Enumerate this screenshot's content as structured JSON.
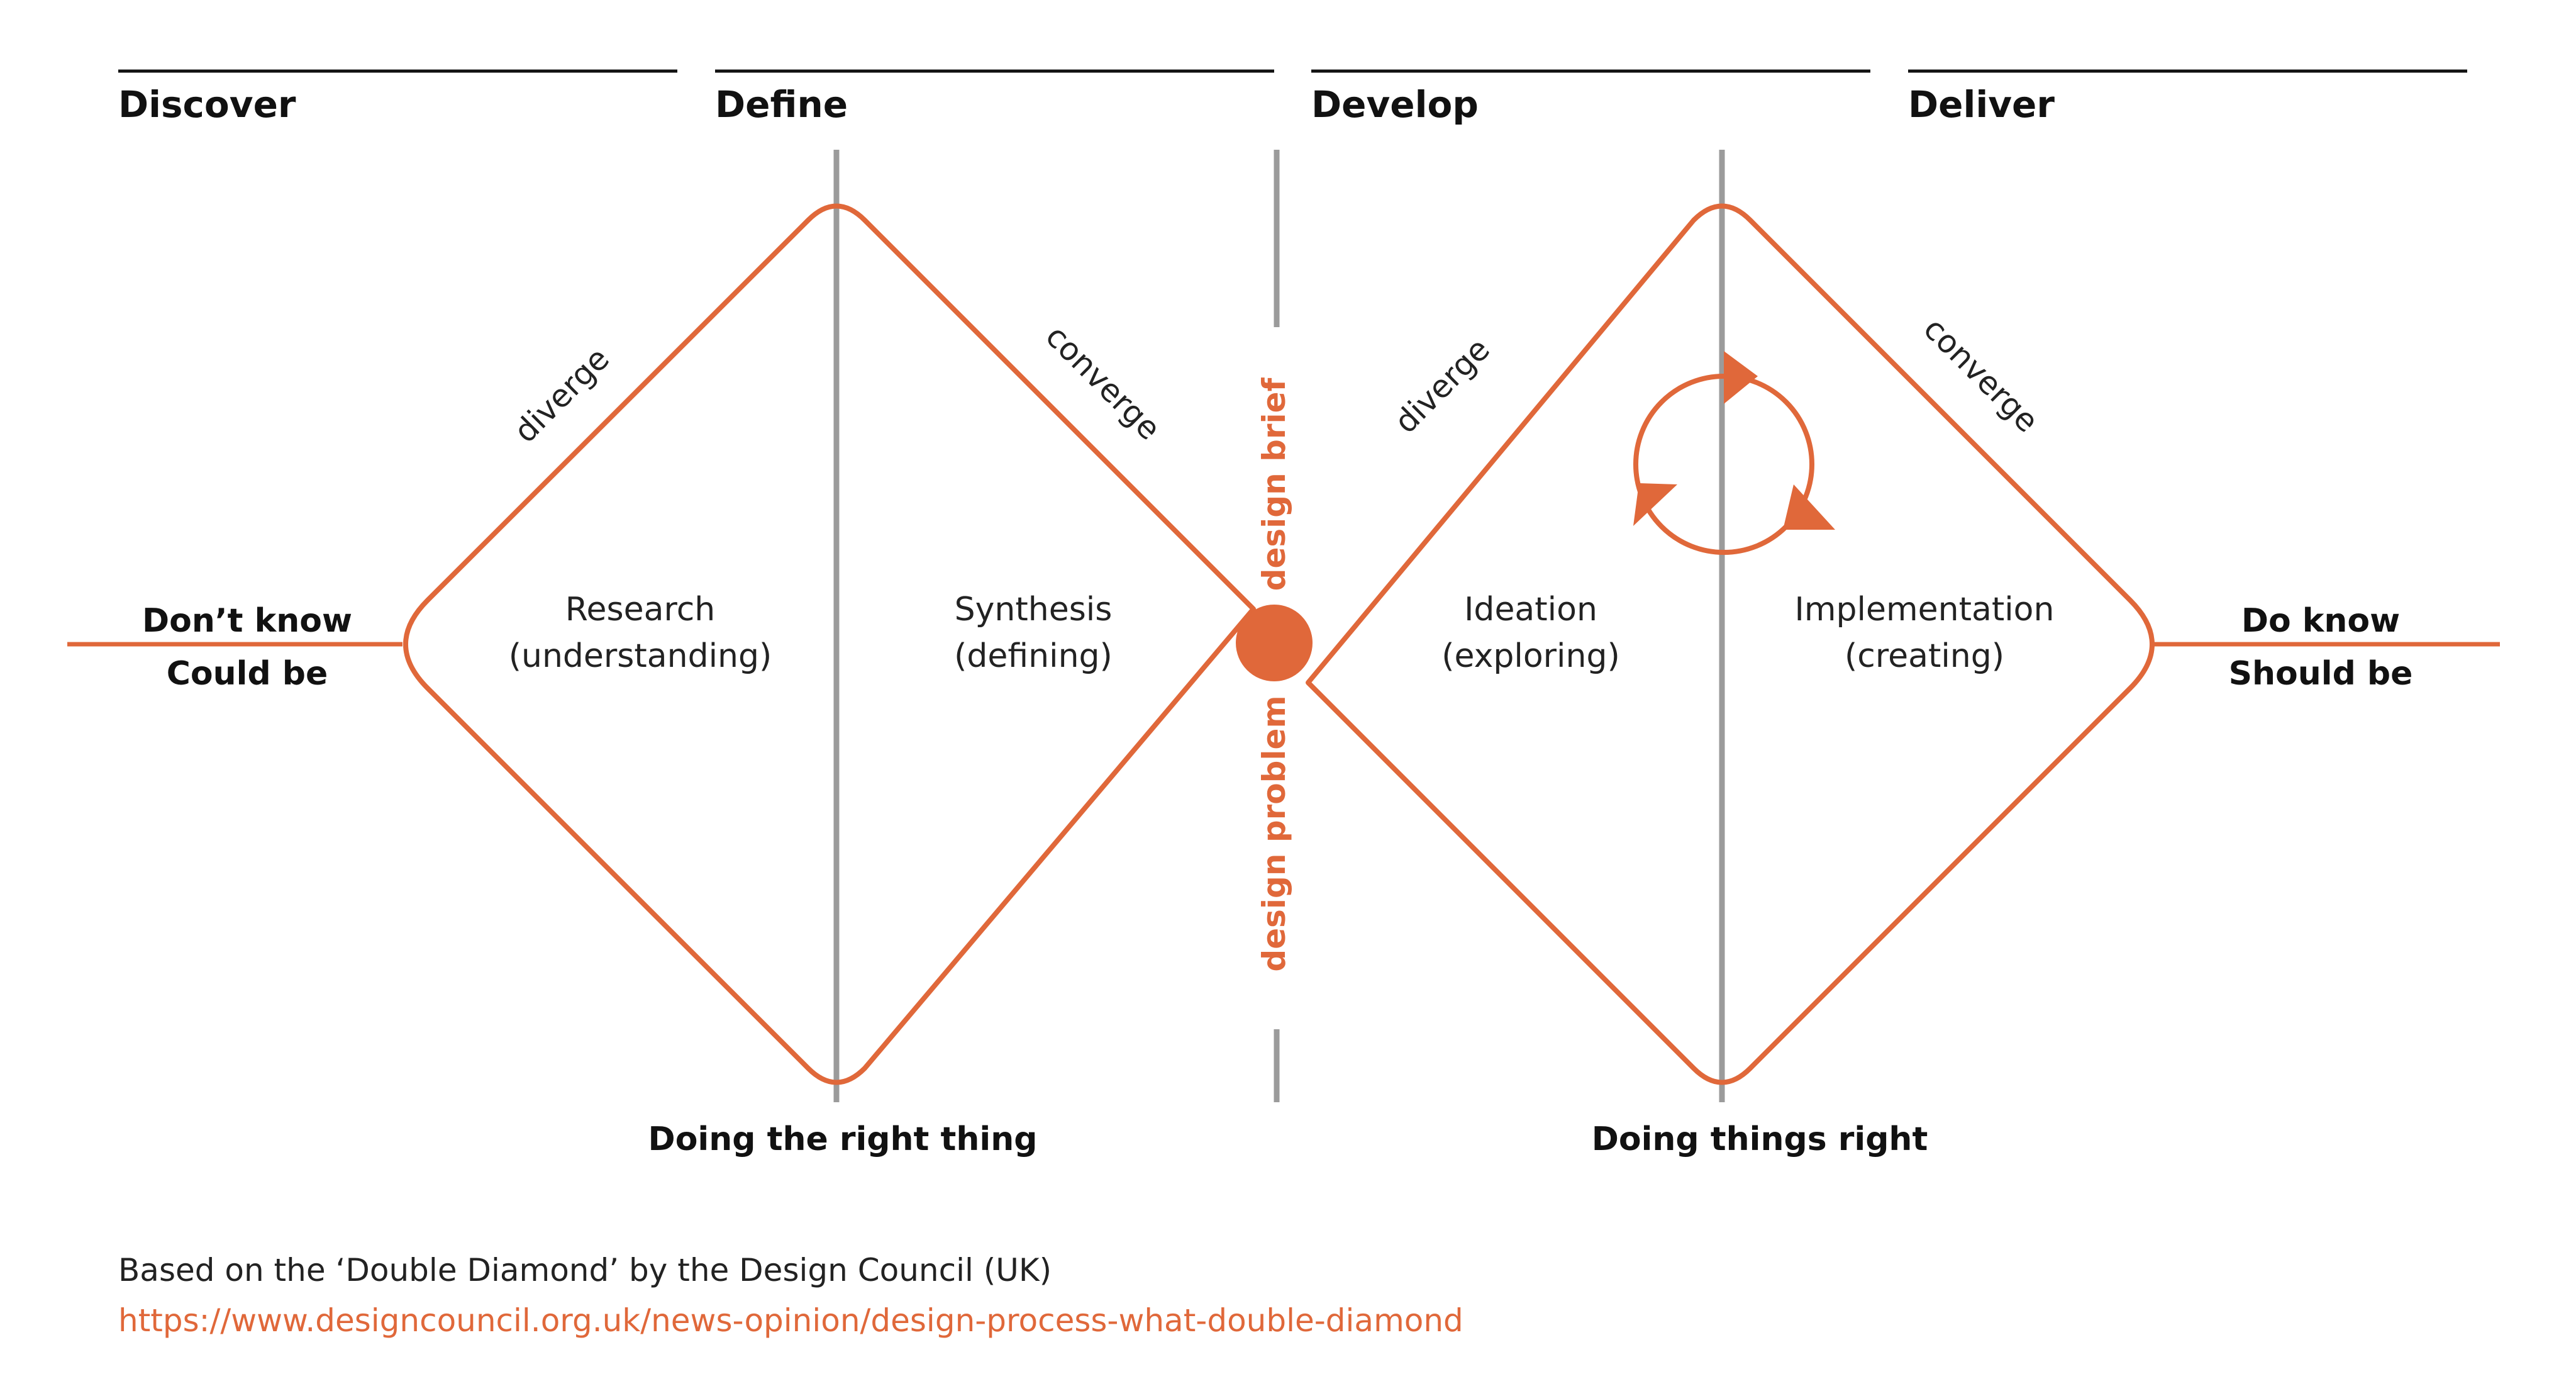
{
  "colors": {
    "accent": "#e0683a",
    "divider": "#9b9b9b",
    "text": "#111111"
  },
  "phases": {
    "discover": "Discover",
    "define": "Define",
    "develop": "Develop",
    "deliver": "Deliver"
  },
  "left": {
    "line1": "Don’t  know",
    "line2": "Could be"
  },
  "right": {
    "line1": "Do  know",
    "line2": "Should be"
  },
  "diamond1": {
    "diverge": "diverge",
    "converge": "converge",
    "stage1_title": "Research",
    "stage1_sub": "(understanding)",
    "stage2_title": "Synthesis",
    "stage2_sub": "(defining)",
    "bottom_label": "Doing the right thing"
  },
  "diamond2": {
    "diverge": "diverge",
    "converge": "converge",
    "stage1_title": "Ideation",
    "stage1_sub": "(exploring)",
    "stage2_title": "Implementation",
    "stage2_sub": "(creating)",
    "bottom_label": "Doing things right"
  },
  "center": {
    "brief": "design brief",
    "problem": "design problem"
  },
  "icons": {
    "iteration": "cycle-arrows-icon"
  },
  "caption": {
    "text": "Based on the ‘Double Diamond’ by the Design Council (UK)",
    "link": "https://www.designcouncil.org.uk/news-opinion/design-process-what-double-diamond"
  }
}
